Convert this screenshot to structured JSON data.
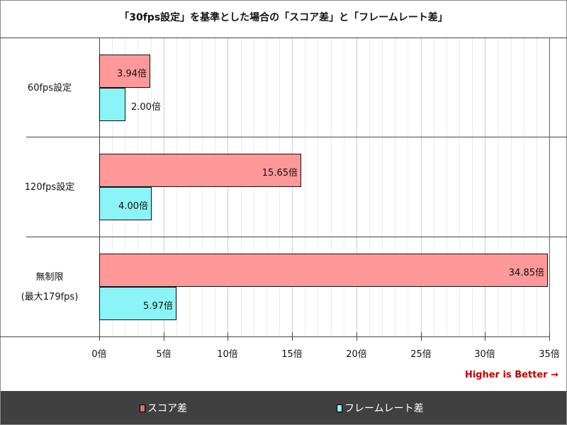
{
  "title": "「30fps設定」を基準とした場合の「スコア差」と「フレームレート差」",
  "higher_is_better": "Higher is Better →",
  "categories": [
    {
      "label_lines": [
        "60fps設定"
      ],
      "score_label": "3.94倍",
      "fps_label": "2.00倍"
    },
    {
      "label_lines": [
        "120fps設定"
      ],
      "score_label": "15.65倍",
      "fps_label": "4.00倍"
    },
    {
      "label_lines": [
        "無制限",
        "(最大179fps)"
      ],
      "score_label": "34.85倍",
      "fps_label": "5.97倍"
    }
  ],
  "x_ticks": [
    "0倍",
    "5倍",
    "10倍",
    "15倍",
    "20倍",
    "25倍",
    "30倍",
    "35倍"
  ],
  "legend": [
    {
      "label": "スコア差",
      "color": "#ff9999"
    },
    {
      "label": "フレームレート差",
      "color": "#8af4f6"
    }
  ],
  "colors": {
    "score": "#ff9999",
    "fps": "#8af4f6",
    "accent": "#c00000",
    "legend_bg": "#404040"
  },
  "chart_data": {
    "type": "bar",
    "orientation": "horizontal",
    "title": "「30fps設定」を基準とした場合の「スコア差」と「フレームレート差」",
    "categories": [
      "60fps設定",
      "120fps設定",
      "無制限 (最大179fps)"
    ],
    "series": [
      {
        "name": "スコア差",
        "values": [
          3.94,
          15.65,
          34.85
        ],
        "color": "#ff9999"
      },
      {
        "name": "フレームレート差",
        "values": [
          2.0,
          4.0,
          5.97
        ],
        "color": "#8af4f6"
      }
    ],
    "xlabel": "",
    "ylabel": "",
    "xlim": [
      0,
      35
    ],
    "x_tick_step": 5,
    "grid": true,
    "legend_position": "bottom",
    "annotations": [
      "Higher is Better →"
    ],
    "value_suffix": "倍"
  }
}
